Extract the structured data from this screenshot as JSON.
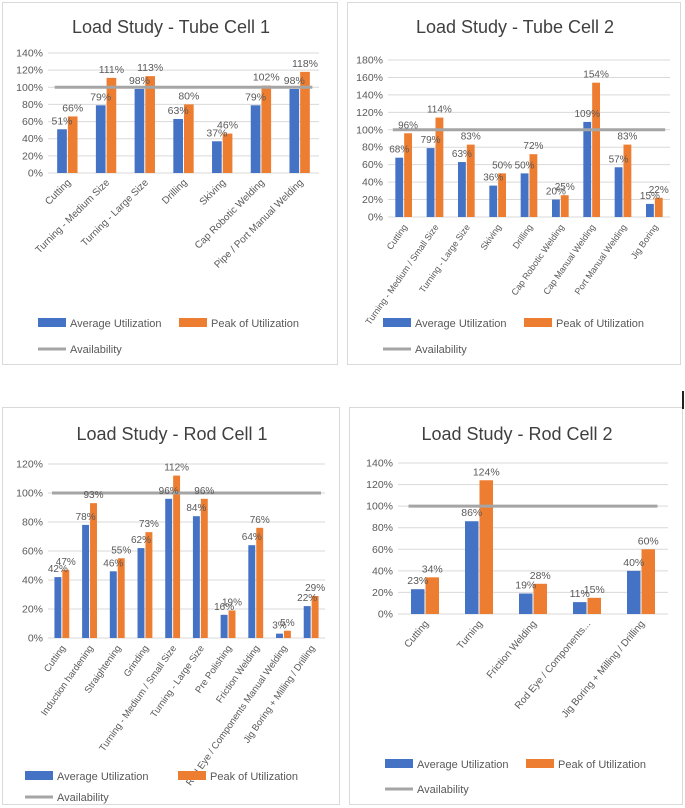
{
  "colors": {
    "average": "#4472C4",
    "peak": "#ED7D31",
    "availability": "#A5A5A5",
    "gridline": "#d9d9d9",
    "text": "#595959",
    "title": "#404040"
  },
  "legend": {
    "average_label": "Average Utilization",
    "peak_label": "Peak of Utilization",
    "availability_label": "Availability"
  },
  "chart_data": [
    {
      "type": "bar",
      "title": "Load Study - Tube Cell 1",
      "categories": [
        "Cutting",
        "Turning - Medium Size",
        "Turning - Large Size",
        "Drilling",
        "Skiving",
        "Cap Robotic Welding",
        "Pipe / Port Manual Welding"
      ],
      "series": [
        {
          "name": "Average Utilization",
          "values": [
            51,
            79,
            98,
            63,
            37,
            79,
            98
          ]
        },
        {
          "name": "Peak of Utilization",
          "values": [
            66,
            111,
            113,
            80,
            46,
            102,
            118
          ]
        }
      ],
      "availability": 100,
      "y_ticks": [
        "0%",
        "20%",
        "40%",
        "60%",
        "80%",
        "100%",
        "120%",
        "140%"
      ],
      "ylim": [
        0,
        140
      ],
      "value_labels": [
        [
          "51%",
          "79%",
          "98%",
          "63%",
          "37%",
          "79%",
          "98%"
        ],
        [
          "66%",
          "111%",
          "113%",
          "80%",
          "46%",
          "102%",
          "118%"
        ]
      ],
      "legend_position": "bottom",
      "grid": true
    },
    {
      "type": "bar",
      "title": "Load Study - Tube Cell 2",
      "categories": [
        "Cutting",
        "Turning - Medium / Small Size",
        "Turning - Large Size",
        "Skiving",
        "Drilling",
        "Cap Robotic Welding",
        "Cap Manual Welding",
        "Port Manual Welding",
        "Jig Boring"
      ],
      "series": [
        {
          "name": "Average Utilization",
          "values": [
            68,
            79,
            63,
            36,
            50,
            20,
            109,
            57,
            15
          ]
        },
        {
          "name": "Peak of Utilization",
          "values": [
            96,
            114,
            83,
            50,
            72,
            25,
            154,
            83,
            22
          ]
        }
      ],
      "availability": 100,
      "y_ticks": [
        "0%",
        "20%",
        "40%",
        "60%",
        "80%",
        "100%",
        "120%",
        "140%",
        "160%",
        "180%"
      ],
      "ylim": [
        0,
        180
      ],
      "value_labels": [
        [
          "68%",
          "79%",
          "63%",
          "36%",
          "50%",
          "20%",
          "109%",
          "57%",
          "15%"
        ],
        [
          "96%",
          "114%",
          "83%",
          "50%",
          "72%",
          "25%",
          "154%",
          "83%",
          "22%"
        ]
      ],
      "legend_position": "bottom",
      "grid": true
    },
    {
      "type": "bar",
      "title": "Load Study - Rod Cell 1",
      "categories": [
        "Cutting",
        "Induction hardening",
        "Straightening",
        "Grinding",
        "Turning - Medium / Small Size",
        "Turning - Large Size",
        "Pre Polishing",
        "Friction Welding",
        "Rod Eye / Components Manual Welding",
        "Jig Boring + Milling / Drilling"
      ],
      "series": [
        {
          "name": "Average Utilization",
          "values": [
            42,
            78,
            46,
            62,
            96,
            84,
            16,
            64,
            3,
            22
          ]
        },
        {
          "name": "Peak of Utilization",
          "values": [
            47,
            93,
            55,
            73,
            112,
            96,
            19,
            76,
            5,
            29
          ]
        }
      ],
      "availability": 100,
      "y_ticks": [
        "0%",
        "20%",
        "40%",
        "60%",
        "80%",
        "100%",
        "120%"
      ],
      "ylim": [
        0,
        120
      ],
      "value_labels": [
        [
          "42%",
          "78%",
          "46%",
          "62%",
          "96%",
          "84%",
          "16%",
          "64%",
          "3%",
          "22%"
        ],
        [
          "47%",
          "93%",
          "55%",
          "73%",
          "112%",
          "96%",
          "19%",
          "76%",
          "5%",
          "29%"
        ]
      ],
      "legend_position": "bottom",
      "grid": true
    },
    {
      "type": "bar",
      "title": "Load Study - Rod Cell 2",
      "categories": [
        "Cutting",
        "Turning",
        "Friction Welding",
        "Rod Eye / Components...",
        "Jig Boring + Milling / Drilling"
      ],
      "series": [
        {
          "name": "Average Utilization",
          "values": [
            23,
            86,
            19,
            11,
            40
          ]
        },
        {
          "name": "Peak of Utilization",
          "values": [
            34,
            124,
            28,
            15,
            60
          ]
        }
      ],
      "availability": 100,
      "y_ticks": [
        "0%",
        "20%",
        "40%",
        "60%",
        "80%",
        "100%",
        "120%",
        "140%"
      ],
      "ylim": [
        0,
        140
      ],
      "value_labels": [
        [
          "23%",
          "86%",
          "19%",
          "11%",
          "40%"
        ],
        [
          "34%",
          "124%",
          "28%",
          "15%",
          "60%"
        ]
      ],
      "legend_position": "bottom",
      "grid": true
    }
  ]
}
